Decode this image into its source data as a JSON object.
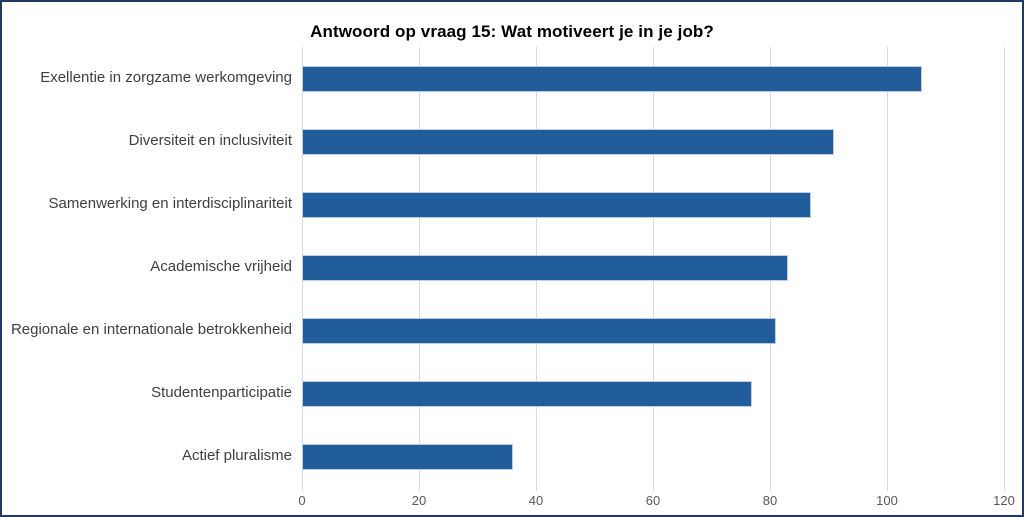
{
  "window": {
    "background_color": "#ffffff",
    "frame_border_color": "#203864"
  },
  "chart_data": {
    "type": "bar",
    "orientation": "horizontal",
    "title": "Antwoord op vraag 15: Wat motiveert je in je job?",
    "categories": [
      "Exellentie in zorgzame werkomgeving",
      "Diversiteit en inclusiviteit",
      "Samenwerking en interdisciplinariteit",
      "Academische vrijheid",
      "Regionale en internationale betrokkenheid",
      "Studentenparticipatie",
      "Actief pluralisme"
    ],
    "values": [
      106,
      91,
      87,
      83,
      81,
      77,
      36
    ],
    "xlabel": "",
    "ylabel": "",
    "xlim": [
      0,
      120
    ],
    "x_ticks": [
      0,
      20,
      40,
      60,
      80,
      100,
      120
    ],
    "grid": "vertical-only",
    "legend": "none",
    "bar_color": "#215d9b",
    "bar_border_color": "#bdcde3",
    "gridline_color": "#d9d9d9",
    "tick_label_color": "#595959",
    "category_label_color": "#3f3f3f",
    "title_color": "#000000"
  }
}
